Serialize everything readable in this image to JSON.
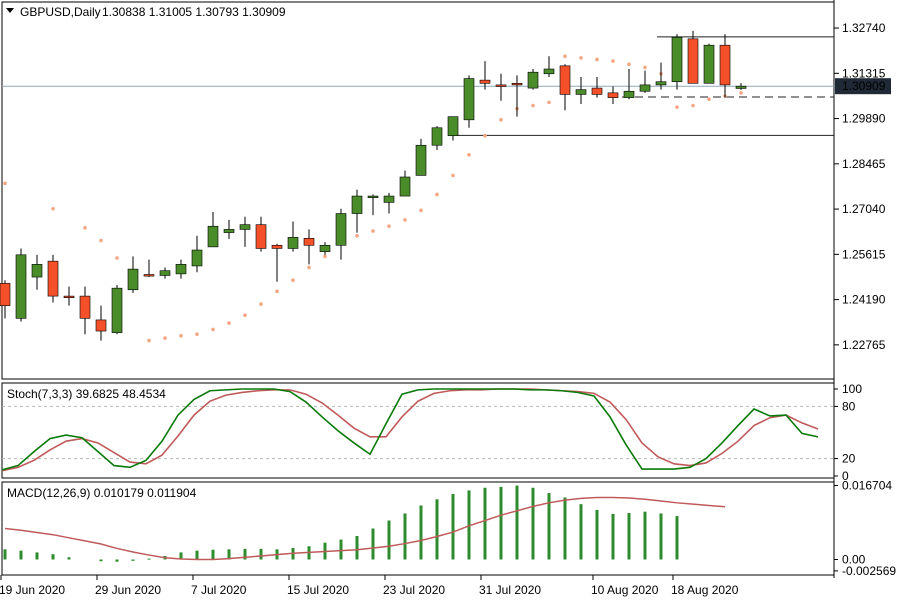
{
  "chart_data": [
    {
      "type": "candlestick",
      "symbol_header": "GBPUSD,Daily",
      "ohlc_header": "1.30838 1.31005 1.30793 1.30909",
      "current_price_label": "1.30909",
      "y_tick_labels": [
        "1.32740",
        "1.31315",
        "1.29890",
        "1.28465",
        "1.27040",
        "1.25615",
        "1.24190",
        "1.22765"
      ],
      "y_ticks": [
        1.3274,
        1.31315,
        1.2989,
        1.28465,
        1.2704,
        1.25615,
        1.2419,
        1.22765
      ],
      "ylim": [
        1.2169,
        1.3356
      ],
      "x_tick_labels": [
        "19 Jun 2020",
        "29 Jun 2020",
        "7 Jul 2020",
        "15 Jul 2020",
        "23 Jul 2020",
        "31 Jul 2020",
        "10 Aug 2020",
        "18 Aug 2020"
      ],
      "x_tick_bar_index": [
        0,
        6,
        12,
        18,
        24,
        30,
        37,
        42
      ],
      "horizontal_levels": [
        {
          "price": 1.3246,
          "style": "solid",
          "from_bar": 41
        },
        {
          "price": 1.3057,
          "style": "dashed",
          "from_bar": 38
        },
        {
          "price": 1.2936,
          "style": "solid",
          "from_bar": 28
        }
      ],
      "bull_color": "#4a8c2a",
      "bear_color": "#f4502a",
      "sar_color": "#f4a582",
      "candles": [
        {
          "o": 1.247,
          "h": 1.248,
          "l": 1.236,
          "c": 1.24
        },
        {
          "o": 1.236,
          "h": 1.258,
          "l": 1.235,
          "c": 1.256
        },
        {
          "o": 1.249,
          "h": 1.256,
          "l": 1.245,
          "c": 1.253
        },
        {
          "o": 1.254,
          "h": 1.256,
          "l": 1.241,
          "c": 1.243
        },
        {
          "o": 1.243,
          "h": 1.246,
          "l": 1.24,
          "c": 1.2425
        },
        {
          "o": 1.243,
          "h": 1.246,
          "l": 1.231,
          "c": 1.236
        },
        {
          "o": 1.2355,
          "h": 1.24,
          "l": 1.229,
          "c": 1.232
        },
        {
          "o": 1.2315,
          "h": 1.2465,
          "l": 1.231,
          "c": 1.2455
        },
        {
          "o": 1.245,
          "h": 1.2555,
          "l": 1.244,
          "c": 1.2515
        },
        {
          "o": 1.2498,
          "h": 1.2545,
          "l": 1.249,
          "c": 1.2493
        },
        {
          "o": 1.2495,
          "h": 1.252,
          "l": 1.2485,
          "c": 1.251
        },
        {
          "o": 1.25,
          "h": 1.2545,
          "l": 1.2485,
          "c": 1.253
        },
        {
          "o": 1.2525,
          "h": 1.262,
          "l": 1.2505,
          "c": 1.2575
        },
        {
          "o": 1.2585,
          "h": 1.2695,
          "l": 1.2585,
          "c": 1.265
        },
        {
          "o": 1.263,
          "h": 1.267,
          "l": 1.261,
          "c": 1.264
        },
        {
          "o": 1.264,
          "h": 1.268,
          "l": 1.2585,
          "c": 1.2655
        },
        {
          "o": 1.2655,
          "h": 1.268,
          "l": 1.257,
          "c": 1.258
        },
        {
          "o": 1.259,
          "h": 1.2595,
          "l": 1.2475,
          "c": 1.258
        },
        {
          "o": 1.258,
          "h": 1.2665,
          "l": 1.257,
          "c": 1.2615
        },
        {
          "o": 1.2612,
          "h": 1.264,
          "l": 1.253,
          "c": 1.259
        },
        {
          "o": 1.257,
          "h": 1.26,
          "l": 1.256,
          "c": 1.259
        },
        {
          "o": 1.259,
          "h": 1.2705,
          "l": 1.2545,
          "c": 1.269
        },
        {
          "o": 1.269,
          "h": 1.2765,
          "l": 1.263,
          "c": 1.2745
        },
        {
          "o": 1.274,
          "h": 1.275,
          "l": 1.2685,
          "c": 1.2745
        },
        {
          "o": 1.2725,
          "h": 1.2755,
          "l": 1.269,
          "c": 1.2745
        },
        {
          "o": 1.2745,
          "h": 1.2825,
          "l": 1.2745,
          "c": 1.2805
        },
        {
          "o": 1.281,
          "h": 1.2925,
          "l": 1.281,
          "c": 1.2905
        },
        {
          "o": 1.2905,
          "h": 1.2965,
          "l": 1.289,
          "c": 1.296
        },
        {
          "o": 1.2935,
          "h": 1.2995,
          "l": 1.292,
          "c": 1.2995
        },
        {
          "o": 1.2985,
          "h": 1.3125,
          "l": 1.296,
          "c": 1.3115
        },
        {
          "o": 1.311,
          "h": 1.317,
          "l": 1.308,
          "c": 1.31
        },
        {
          "o": 1.3095,
          "h": 1.313,
          "l": 1.3045,
          "c": 1.309
        },
        {
          "o": 1.31,
          "h": 1.3125,
          "l": 1.2995,
          "c": 1.3095
        },
        {
          "o": 1.3085,
          "h": 1.3145,
          "l": 1.308,
          "c": 1.3135
        },
        {
          "o": 1.313,
          "h": 1.3185,
          "l": 1.312,
          "c": 1.3145
        },
        {
          "o": 1.3155,
          "h": 1.316,
          "l": 1.3015,
          "c": 1.3065
        },
        {
          "o": 1.3065,
          "h": 1.312,
          "l": 1.3035,
          "c": 1.308
        },
        {
          "o": 1.3085,
          "h": 1.312,
          "l": 1.3055,
          "c": 1.3065
        },
        {
          "o": 1.307,
          "h": 1.309,
          "l": 1.3035,
          "c": 1.3055
        },
        {
          "o": 1.3055,
          "h": 1.3145,
          "l": 1.305,
          "c": 1.3075
        },
        {
          "o": 1.3075,
          "h": 1.314,
          "l": 1.307,
          "c": 1.3095
        },
        {
          "o": 1.3095,
          "h": 1.3165,
          "l": 1.308,
          "c": 1.3105
        },
        {
          "o": 1.3105,
          "h": 1.3255,
          "l": 1.308,
          "c": 1.3245
        },
        {
          "o": 1.324,
          "h": 1.3265,
          "l": 1.31,
          "c": 1.31
        },
        {
          "o": 1.31,
          "h": 1.3225,
          "l": 1.31,
          "c": 1.322
        },
        {
          "o": 1.322,
          "h": 1.3255,
          "l": 1.3055,
          "c": 1.3095
        },
        {
          "o": 1.30838,
          "h": 1.31005,
          "l": 1.30793,
          "c": 1.30909
        }
      ],
      "parabolic_sar": [
        1.2785,
        null,
        null,
        1.2705,
        null,
        1.2645,
        1.2605,
        1.255,
        1.2495,
        1.229,
        1.2298,
        1.2305,
        1.231,
        1.2325,
        1.2345,
        1.237,
        1.2405,
        1.2445,
        1.248,
        1.252,
        1.2555,
        1.2595,
        1.262,
        1.2635,
        1.265,
        1.267,
        1.27,
        1.275,
        1.281,
        1.2875,
        1.2935,
        1.2985,
        1.302,
        1.303,
        1.304,
        1.3185,
        1.318,
        1.3175,
        1.317,
        1.316,
        1.315,
        1.313,
        1.3025,
        1.303,
        1.305,
        1.306,
        1.307
      ]
    },
    {
      "type": "line",
      "title": "Stoch(7,3,3) 39.6825 48.4534",
      "ylim": [
        0,
        100
      ],
      "y_tick_labels": [
        "100",
        "80",
        "20",
        "0"
      ],
      "y_ticks": [
        100,
        80,
        20,
        0
      ],
      "levels": [
        80,
        20
      ],
      "series": [
        {
          "color": "#0a7a0a",
          "values": [
            7,
            12,
            28,
            43,
            47,
            44,
            28,
            12,
            10,
            18,
            40,
            70,
            88,
            98,
            99,
            100,
            100,
            100,
            97,
            85,
            68,
            52,
            38,
            25,
            60,
            94,
            99,
            100,
            100,
            100,
            100,
            100,
            100,
            99,
            99,
            98,
            96,
            92,
            68,
            36,
            8,
            8,
            8,
            10,
            20,
            38,
            58,
            77,
            69,
            70,
            49,
            45
          ]
        },
        {
          "color": "#c05a5a",
          "values": [
            6,
            10,
            18,
            30,
            40,
            43,
            38,
            27,
            16,
            14,
            24,
            46,
            70,
            86,
            93,
            96,
            98,
            99,
            99,
            94,
            84,
            70,
            55,
            45,
            45,
            68,
            86,
            95,
            98,
            99,
            99,
            100,
            100,
            100,
            99,
            98,
            97,
            95,
            85,
            65,
            38,
            22,
            14,
            12,
            15,
            26,
            40,
            58,
            67,
            70,
            61,
            54
          ]
        }
      ]
    },
    {
      "type": "bar",
      "title": "MACD(12,26,9) 0.010179 0.011904",
      "ylim": [
        -0.0035,
        0.0175
      ],
      "y_tick_labels": [
        "0.016704",
        "0.00",
        "-0.002569"
      ],
      "y_ticks": [
        0.016704,
        0.0,
        -0.002569
      ],
      "histogram_color": "#2e8b2e",
      "signal_color": "#c05a5a",
      "histogram": [
        0.0023,
        0.002,
        0.0016,
        0.0012,
        0.0005,
        null,
        -0.0004,
        -0.0005,
        -0.0003,
        0.0002,
        0.0008,
        0.0016,
        0.002,
        0.0022,
        0.0023,
        0.0024,
        0.0024,
        0.0023,
        0.0026,
        0.003,
        0.0038,
        0.0045,
        0.0053,
        0.007,
        0.0088,
        0.0104,
        0.0122,
        0.0136,
        0.0148,
        0.0156,
        0.0162,
        0.0164,
        0.0167,
        0.0162,
        0.015,
        0.014,
        0.0125,
        0.0112,
        0.0103,
        0.0105,
        0.0108,
        0.0104,
        0.0098
      ],
      "signal": [
        0.007,
        0.0066,
        0.0061,
        0.0056,
        0.0049,
        0.0042,
        0.0035,
        0.0025,
        0.0017,
        0.001,
        0.0004,
        0.0001,
        0.0,
        0.0,
        0.0002,
        0.0005,
        0.0008,
        0.0011,
        0.0014,
        0.0016,
        0.0018,
        0.002,
        0.0022,
        0.0026,
        0.003,
        0.0036,
        0.0043,
        0.0052,
        0.0062,
        0.0076,
        0.0088,
        0.01,
        0.011,
        0.012,
        0.0128,
        0.0134,
        0.0138,
        0.014,
        0.014,
        0.0139,
        0.0136,
        0.0132,
        0.0128,
        0.0125,
        0.0122,
        0.0119
      ]
    }
  ]
}
